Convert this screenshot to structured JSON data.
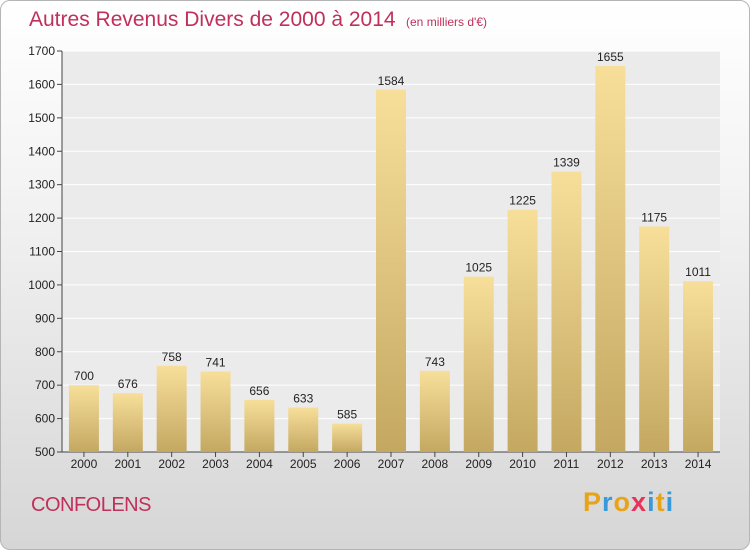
{
  "header": {
    "title": "Autres Revenus Divers de 2000 à 2014",
    "subtitle": "(en milliers d'€)"
  },
  "footer": {
    "place": "CONFOLENS",
    "brand": "Proxiti",
    "brand_colors": [
      "#e8a317",
      "#3a9ad9",
      "#e8a317",
      "#e8325a",
      "#3a9ad9",
      "#e8a317",
      "#3a9ad9"
    ]
  },
  "colors": {
    "title": "#c0305b",
    "bar_light": "#f7df9a",
    "bar_dark": "#c4a862"
  },
  "chart_data": {
    "type": "bar",
    "title": "Autres Revenus Divers de 2000 à 2014",
    "subtitle": "(en milliers d'€)",
    "categories": [
      "2000",
      "2001",
      "2002",
      "2003",
      "2004",
      "2005",
      "2006",
      "2007",
      "2008",
      "2009",
      "2010",
      "2011",
      "2012",
      "2013",
      "2014"
    ],
    "values": [
      700,
      676,
      758,
      741,
      656,
      633,
      585,
      1584,
      743,
      1025,
      1225,
      1339,
      1655,
      1175,
      1011
    ],
    "ylim": [
      500,
      1700
    ],
    "yticks": [
      500,
      600,
      700,
      800,
      900,
      1000,
      1100,
      1200,
      1300,
      1400,
      1500,
      1600,
      1700
    ],
    "grid": true,
    "legend": "none"
  }
}
